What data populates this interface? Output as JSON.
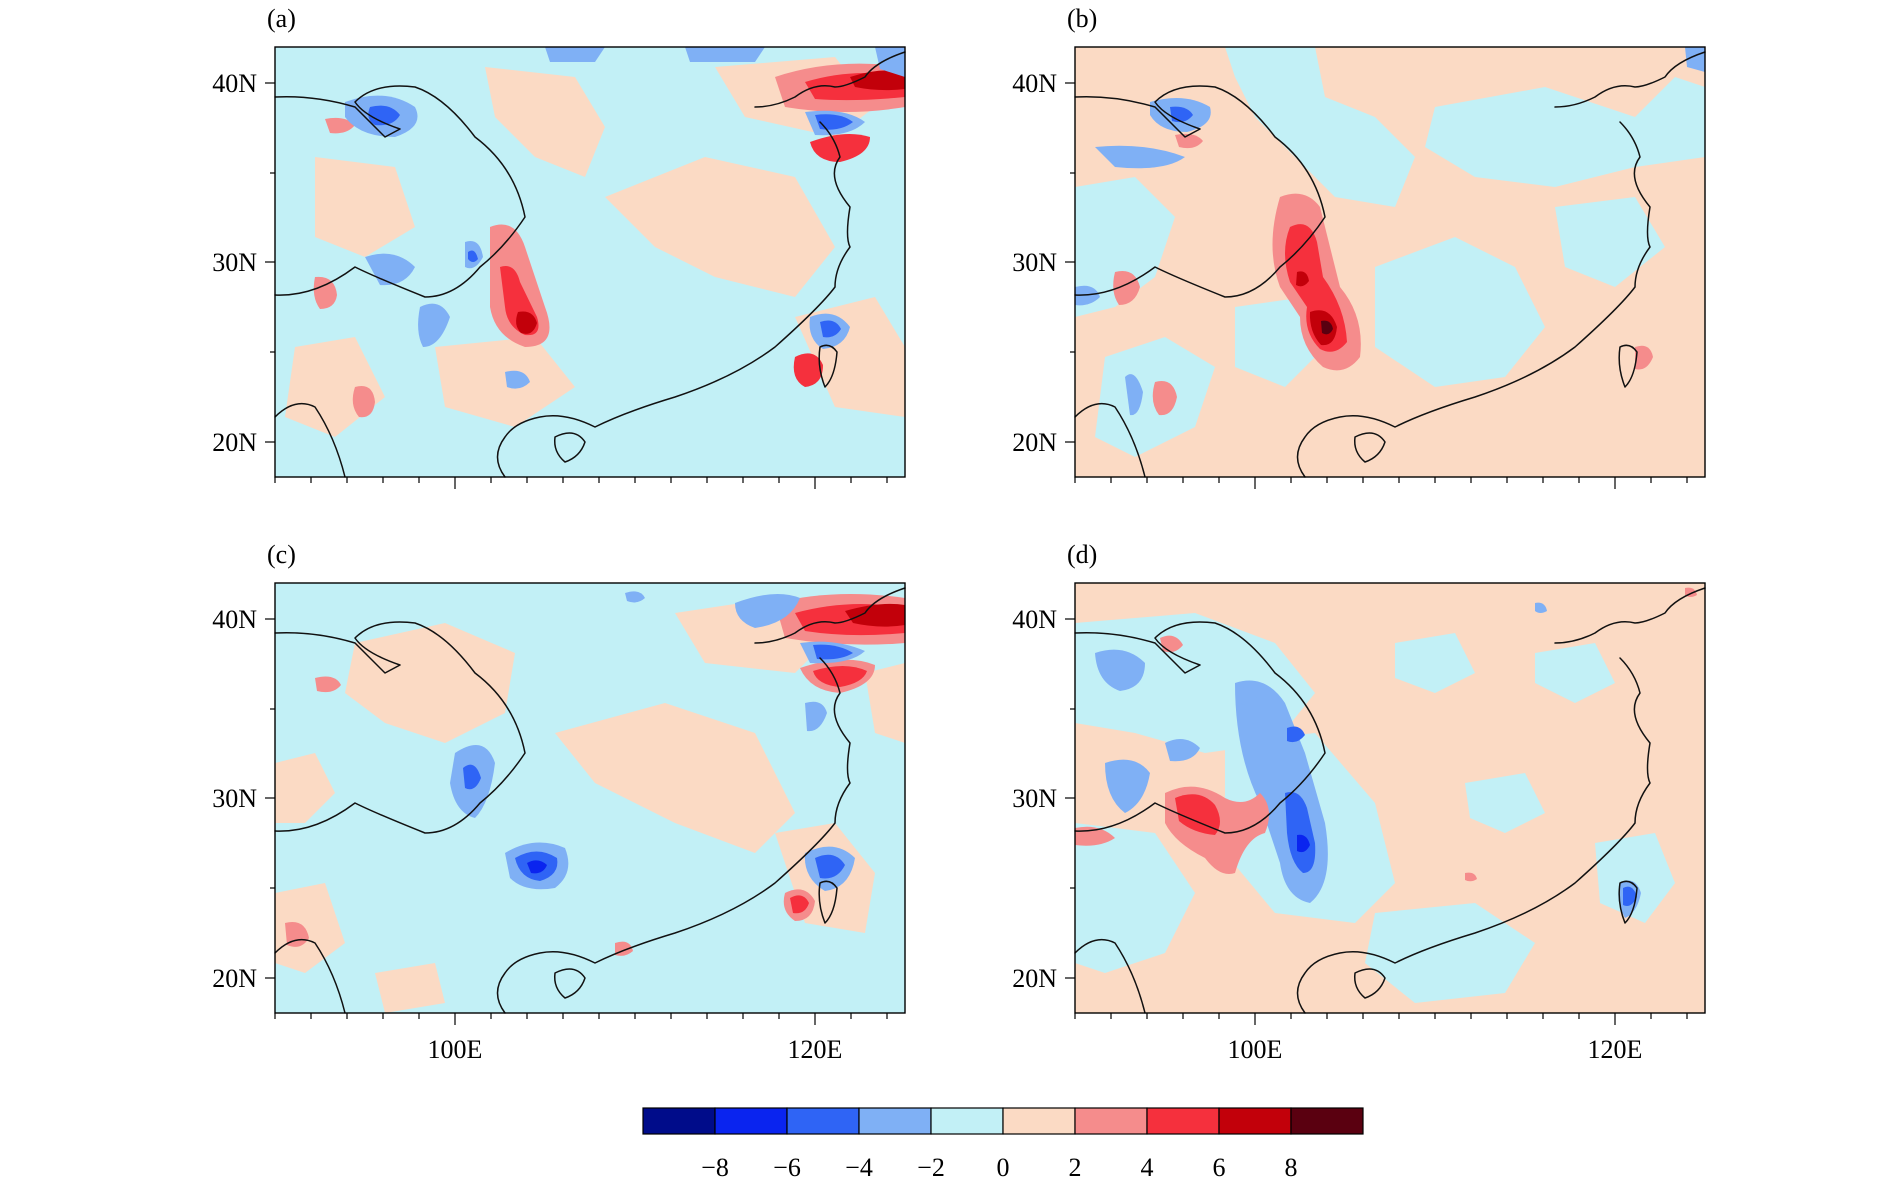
{
  "figure": {
    "colors": {
      "background_field": "#c2f0f6",
      "outline": "#000000",
      "text": "#000000"
    }
  },
  "panels": [
    {
      "label": "(a)",
      "lat_labels": [
        "40N",
        "30N",
        "20N"
      ],
      "lon_labels": []
    },
    {
      "label": "(b)",
      "lat_labels": [
        "40N",
        "30N",
        "20N"
      ],
      "lon_labels": []
    },
    {
      "label": "(c)",
      "lat_labels": [
        "40N",
        "30N",
        "20N"
      ],
      "lon_labels": [
        "100E",
        "120E"
      ]
    },
    {
      "label": "(d)",
      "lat_labels": [
        "40N",
        "30N",
        "20N"
      ],
      "lon_labels": [
        "100E",
        "120E"
      ]
    }
  ],
  "axes": {
    "lon_range": [
      90,
      125
    ],
    "lat_range": [
      18,
      42
    ],
    "lat_ticks": [
      20,
      30,
      40
    ],
    "lon_ticks": [
      100,
      120
    ]
  },
  "colorbar": {
    "labels": [
      "−8",
      "−6",
      "−4",
      "−2",
      "0",
      "2",
      "4",
      "6",
      "8"
    ],
    "colors": [
      "#000c8a",
      "#0a24ef",
      "#2f64f5",
      "#7fb0f5",
      "#c2f0f6",
      "#fbdac4",
      "#f58c8c",
      "#f5303d",
      "#c2000a",
      "#5a0010"
    ]
  }
}
